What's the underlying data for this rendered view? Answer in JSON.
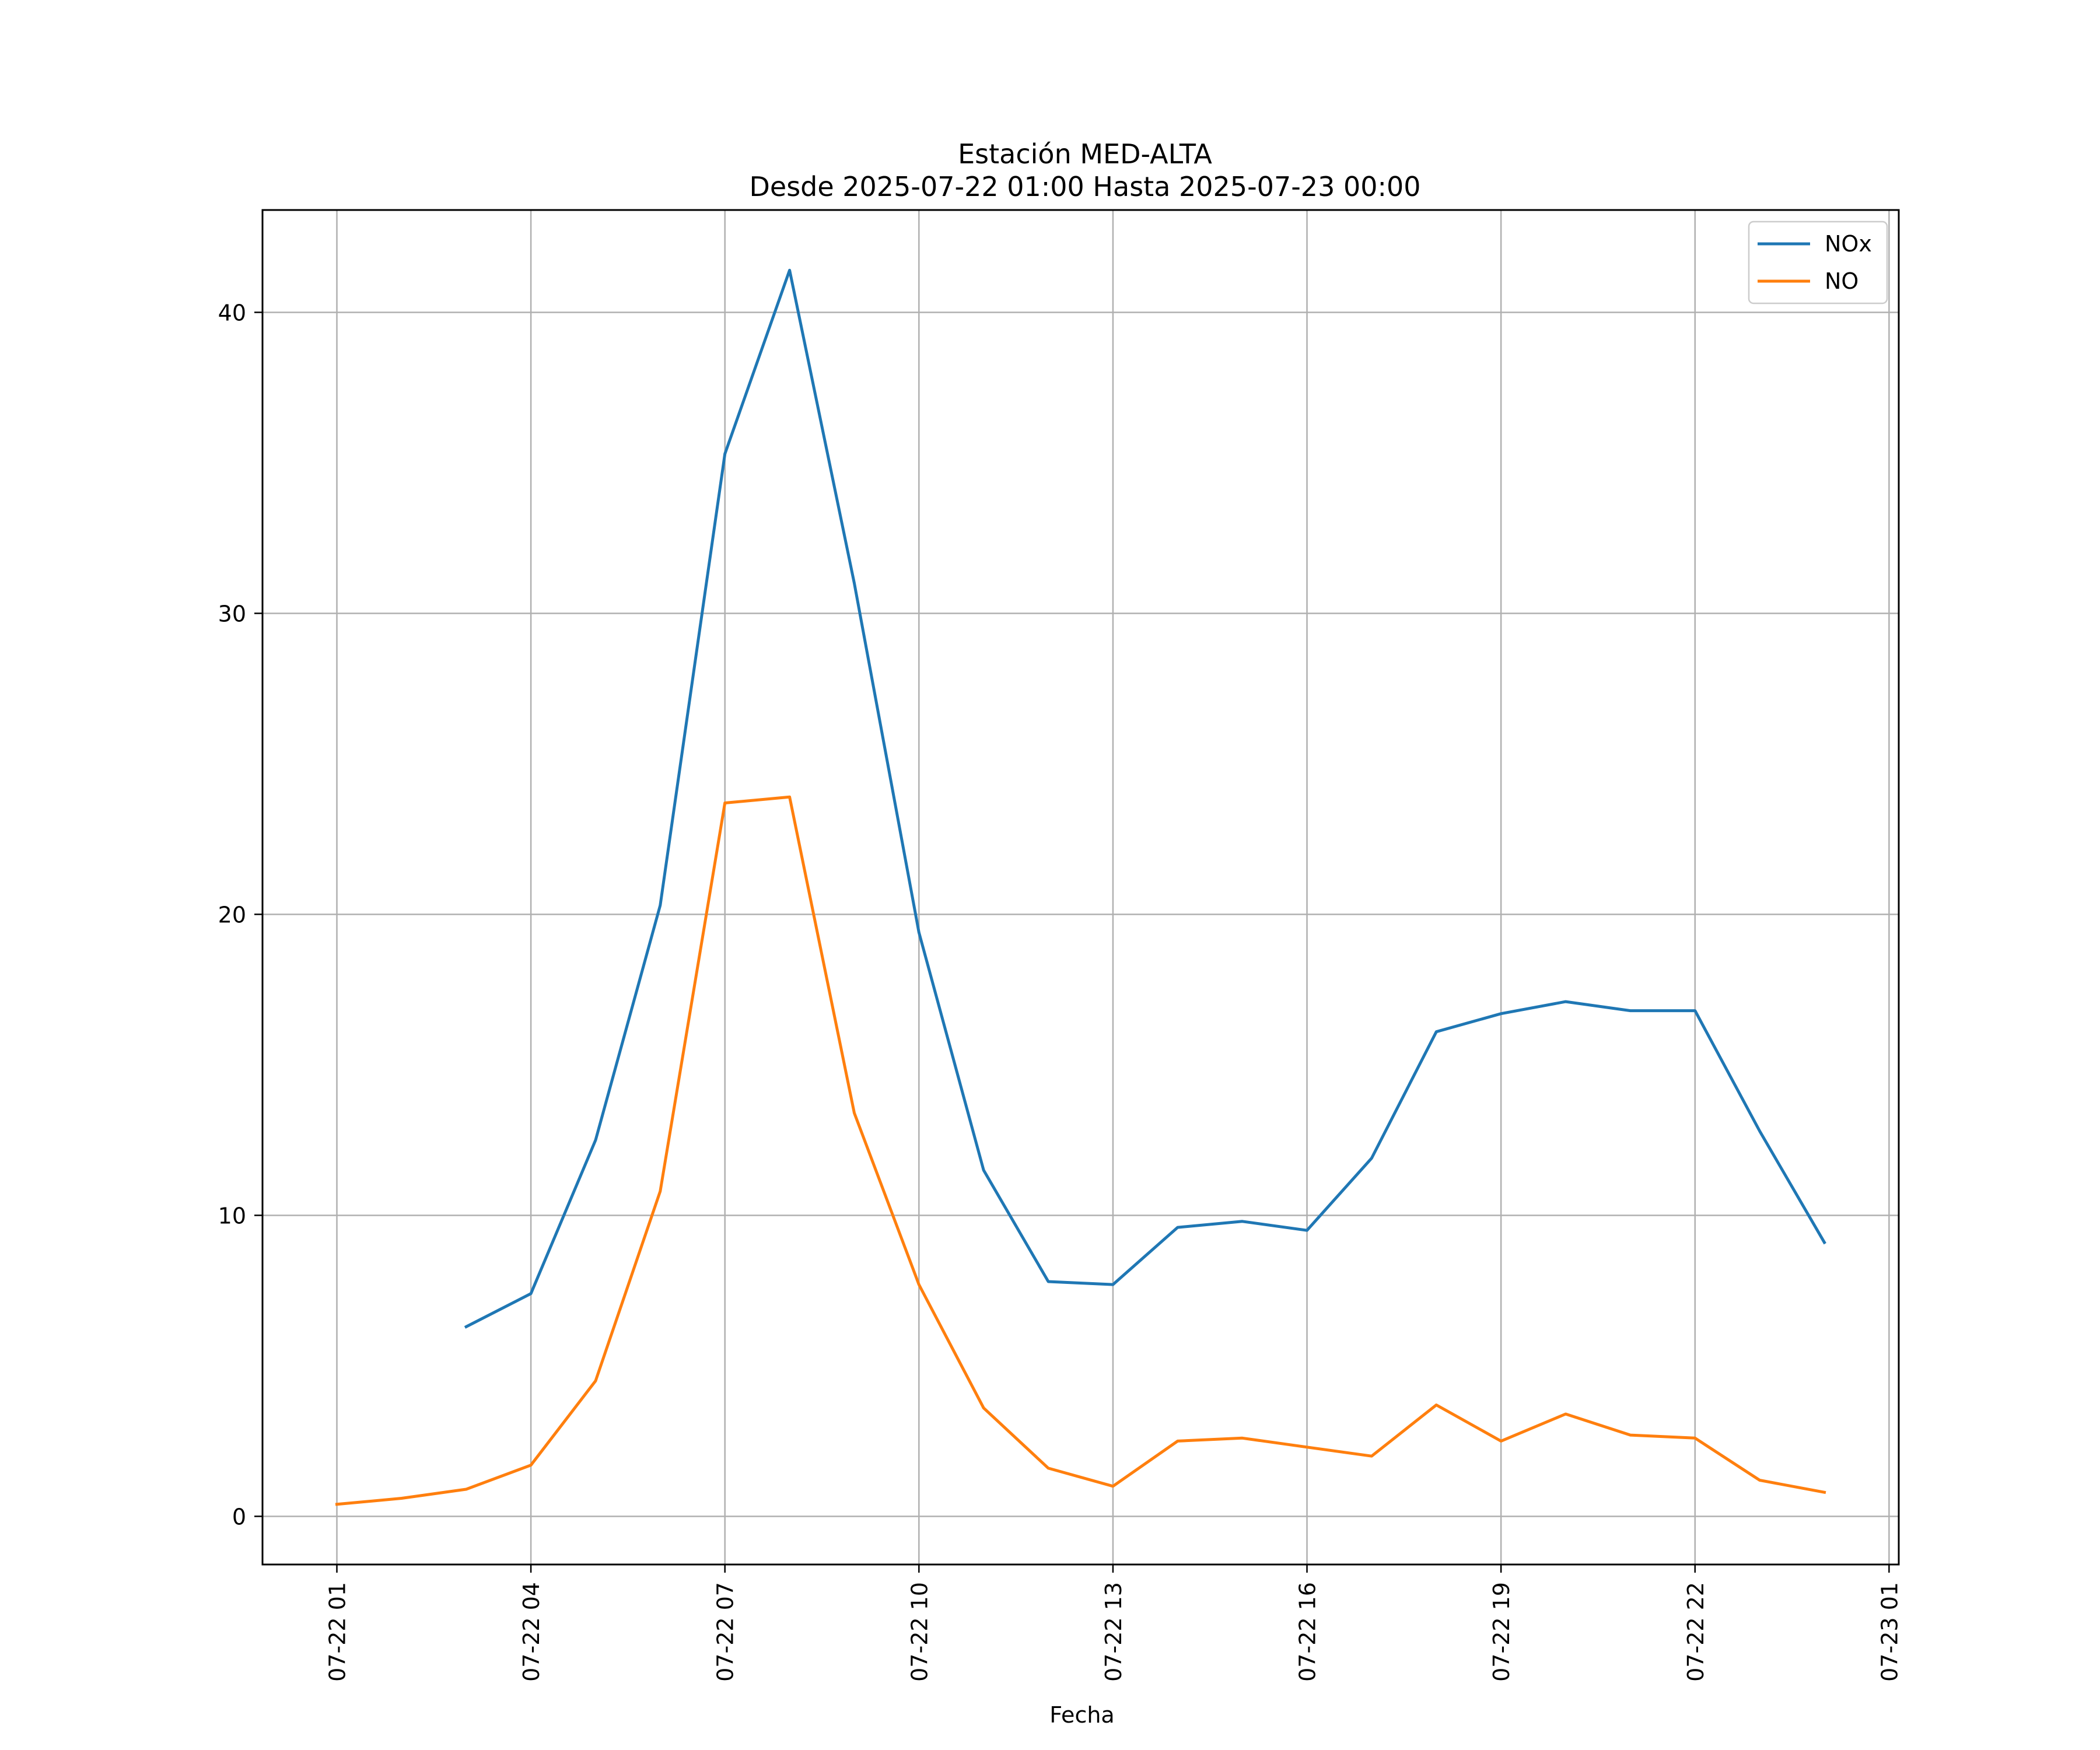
{
  "chart_data": {
    "type": "line",
    "title": "Estación MED-ALTA",
    "subtitle": "Desde 2025-07-22 01:00 Hasta 2025-07-23 00:00",
    "xlabel": "Fecha",
    "ylabel": "",
    "x": [
      "2025-07-22 01:00",
      "2025-07-22 02:00",
      "2025-07-22 03:00",
      "2025-07-22 04:00",
      "2025-07-22 05:00",
      "2025-07-22 06:00",
      "2025-07-22 07:00",
      "2025-07-22 08:00",
      "2025-07-22 09:00",
      "2025-07-22 10:00",
      "2025-07-22 11:00",
      "2025-07-22 12:00",
      "2025-07-22 13:00",
      "2025-07-22 14:00",
      "2025-07-22 15:00",
      "2025-07-22 16:00",
      "2025-07-22 17:00",
      "2025-07-22 18:00",
      "2025-07-22 19:00",
      "2025-07-22 20:00",
      "2025-07-22 21:00",
      "2025-07-22 22:00",
      "2025-07-22 23:00",
      "2025-07-23 00:00"
    ],
    "series": [
      {
        "name": "NOx",
        "color": "#1f77b4",
        "values": [
          null,
          null,
          6.3,
          7.4,
          12.5,
          20.3,
          35.3,
          41.4,
          31.0,
          19.4,
          11.5,
          7.8,
          7.7,
          9.6,
          9.8,
          9.5,
          11.9,
          16.1,
          16.7,
          17.1,
          16.8,
          16.8,
          12.8,
          9.1
        ]
      },
      {
        "name": "NO",
        "color": "#ff7f0e",
        "values": [
          0.4,
          0.6,
          0.9,
          1.7,
          4.5,
          10.8,
          23.7,
          23.9,
          13.4,
          7.7,
          3.6,
          1.6,
          1.0,
          2.5,
          2.6,
          2.3,
          2.0,
          3.7,
          2.5,
          3.4,
          2.7,
          2.6,
          1.2,
          0.8
        ]
      }
    ],
    "ylim": [
      -1.6,
      43.4
    ],
    "yticks": [
      "0",
      "10",
      "20",
      "30",
      "40"
    ],
    "xticks": [
      "07-22 01",
      "07-22 04",
      "07-22 07",
      "07-22 10",
      "07-22 13",
      "07-22 16",
      "07-22 19",
      "07-22 22",
      "07-23 01"
    ],
    "grid": true,
    "legend": "top-right"
  }
}
